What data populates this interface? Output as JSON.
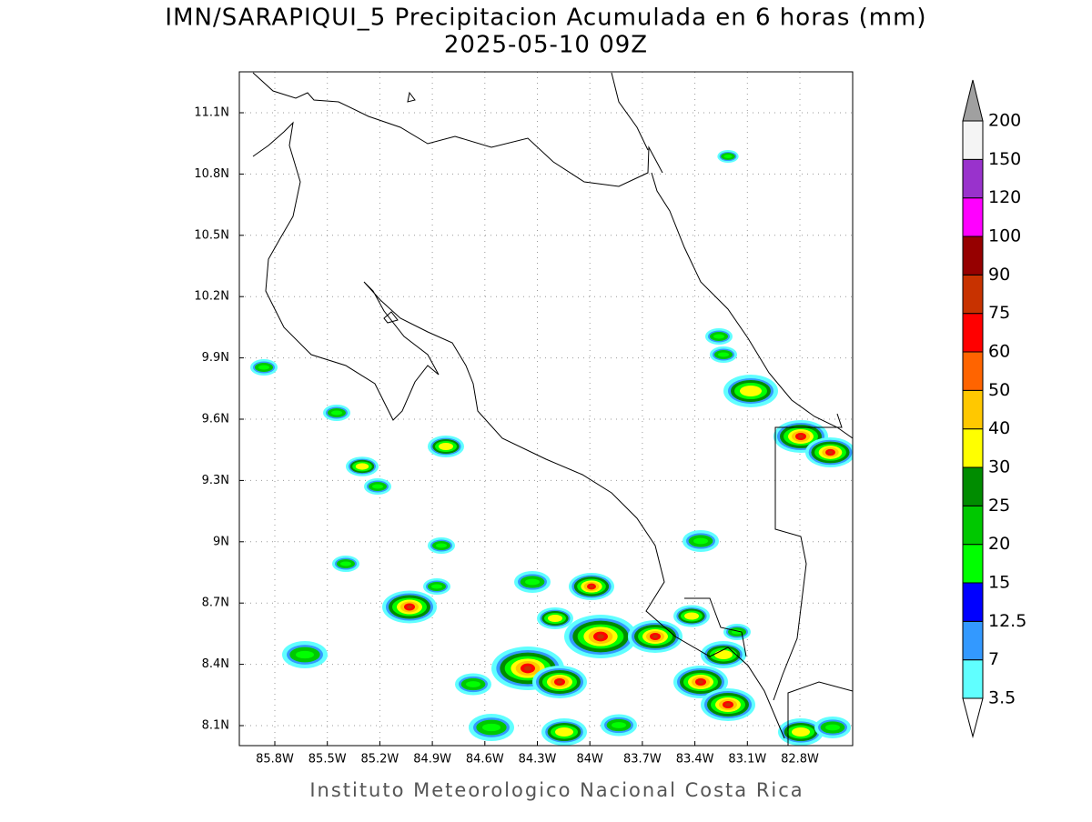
{
  "title": "IMN/SARAPIQUI_5 Precipitacion Acumulada en 6 horas (mm)",
  "subtitle": "2025-05-10 09Z",
  "map": {
    "xticks": [
      "85.8W",
      "85.5W",
      "85.2W",
      "84.9W",
      "84.6W",
      "84.3W",
      "84W",
      "83.7W",
      "83.4W",
      "83.1W",
      "82.8W"
    ],
    "yticks": [
      "11.1N",
      "10.8N",
      "10.5N",
      "10.2N",
      "9.9N",
      "9.6N",
      "9.3N",
      "9N",
      "8.7N",
      "8.4N",
      "8.1N"
    ]
  },
  "colorbar": {
    "levels": [
      3.5,
      7,
      12.5,
      15,
      20,
      25,
      30,
      40,
      50,
      60,
      75,
      90,
      100,
      120,
      150,
      200
    ],
    "colors": [
      "#60ffff",
      "#3399ff",
      "#0000ff",
      "#00ff00",
      "#00c800",
      "#008c00",
      "#ffff00",
      "#ffc800",
      "#ff6400",
      "#ff0000",
      "#c83200",
      "#960000",
      "#ff00ff",
      "#9932cc",
      "#f4f4f4"
    ],
    "under_color": "#ffffff",
    "over_color": "#a0a0a0"
  },
  "footer": "Instituto Meteorologico Nacional Costa Rica"
}
